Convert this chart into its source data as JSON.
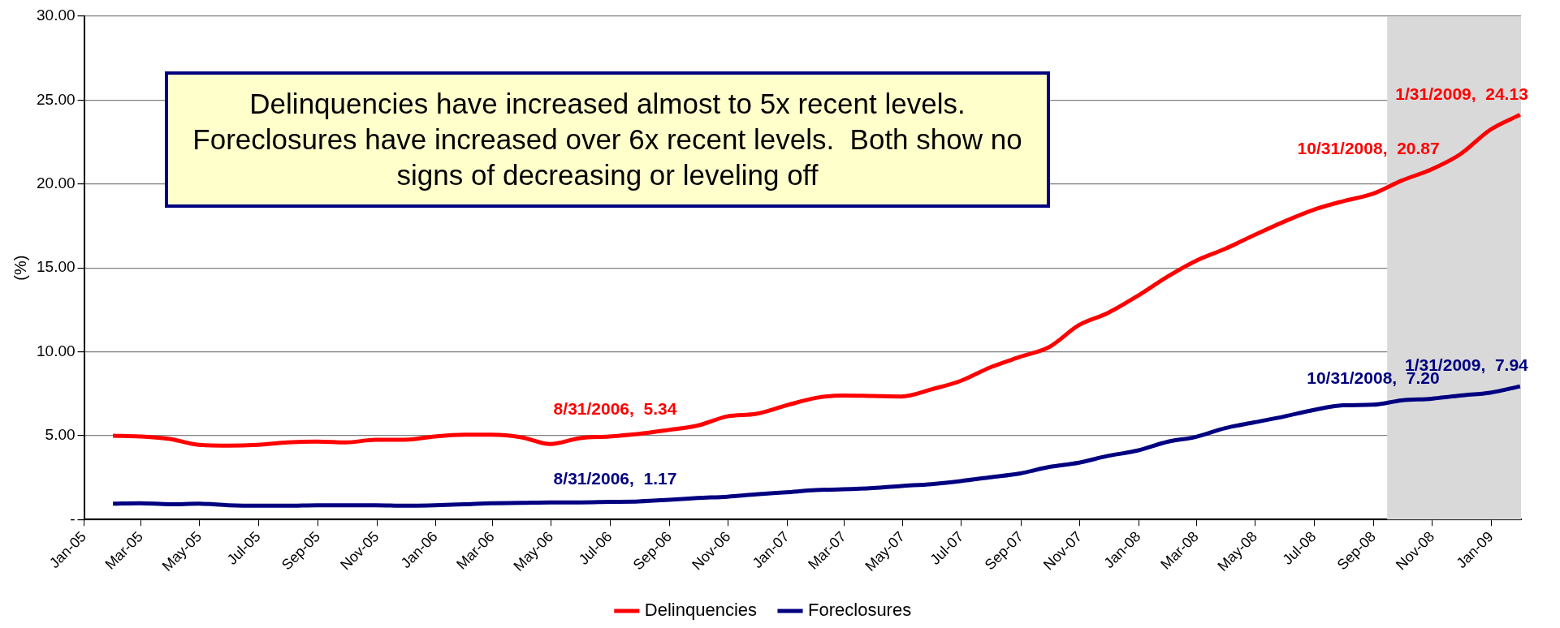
{
  "chart_data": {
    "type": "line",
    "ylabel": "(%)",
    "x": [
      "2005-01-31",
      "2005-02-28",
      "2005-03-31",
      "2005-04-30",
      "2005-05-31",
      "2005-06-30",
      "2005-07-31",
      "2005-08-31",
      "2005-09-30",
      "2005-10-31",
      "2005-11-30",
      "2005-12-31",
      "2006-01-31",
      "2006-02-28",
      "2006-03-31",
      "2006-04-30",
      "2006-05-31",
      "2006-06-30",
      "2006-07-31",
      "2006-08-31",
      "2006-09-30",
      "2006-10-31",
      "2006-11-30",
      "2006-12-31",
      "2007-01-31",
      "2007-02-28",
      "2007-03-31",
      "2007-04-30",
      "2007-05-31",
      "2007-06-30",
      "2007-07-31",
      "2007-08-31",
      "2007-09-30",
      "2007-10-31",
      "2007-11-30",
      "2007-12-31",
      "2008-01-31",
      "2008-02-29",
      "2008-03-31",
      "2008-04-30",
      "2008-05-31",
      "2008-06-30",
      "2008-07-31",
      "2008-08-31",
      "2008-09-30",
      "2008-10-31",
      "2008-11-30",
      "2008-12-31",
      "2009-01-31"
    ],
    "series": [
      {
        "name": "Delinquencies",
        "color": "#ff0000",
        "values": [
          5.0,
          4.95,
          4.8,
          4.45,
          4.4,
          4.45,
          4.6,
          4.65,
          4.6,
          4.75,
          4.75,
          4.95,
          5.05,
          5.05,
          4.9,
          4.5,
          4.85,
          4.95,
          5.1,
          5.34,
          5.6,
          6.15,
          6.3,
          6.8,
          7.25,
          7.39,
          7.36,
          7.33,
          7.76,
          8.26,
          9.07,
          9.7,
          10.28,
          11.59,
          12.31,
          13.33,
          14.48,
          15.41,
          16.14,
          16.95,
          17.76,
          18.45,
          18.97,
          19.41,
          20.2,
          20.87,
          21.78,
          23.23,
          24.13
        ],
        "value_labels": [
          null,
          null,
          null,
          null,
          null,
          null,
          null,
          null,
          null,
          null,
          null,
          null,
          null,
          null,
          null,
          null,
          null,
          null,
          null,
          "8/31/2006,  5.34",
          null,
          null,
          null,
          null,
          null,
          null,
          null,
          null,
          null,
          null,
          null,
          null,
          null,
          null,
          null,
          null,
          null,
          null,
          null,
          null,
          null,
          null,
          null,
          null,
          null,
          "10/31/2008,  20.87",
          null,
          null,
          "1/31/2009,  24.13"
        ]
      },
      {
        "name": "Foreclosures",
        "color": "#000080",
        "values": [
          0.94,
          0.97,
          0.91,
          0.94,
          0.85,
          0.82,
          0.82,
          0.85,
          0.85,
          0.85,
          0.82,
          0.85,
          0.91,
          0.97,
          0.99,
          1.02,
          1.02,
          1.05,
          1.08,
          1.17,
          1.28,
          1.36,
          1.5,
          1.62,
          1.75,
          1.8,
          1.88,
          2.0,
          2.11,
          2.29,
          2.52,
          2.75,
          3.13,
          3.39,
          3.79,
          4.11,
          4.63,
          4.92,
          5.45,
          5.79,
          6.14,
          6.52,
          6.81,
          6.84,
          7.1,
          7.2,
          7.39,
          7.56,
          7.94
        ],
        "value_labels": [
          null,
          null,
          null,
          null,
          null,
          null,
          null,
          null,
          null,
          null,
          null,
          null,
          null,
          null,
          null,
          null,
          null,
          null,
          null,
          "8/31/2006,  1.17",
          null,
          null,
          null,
          null,
          null,
          null,
          null,
          null,
          null,
          null,
          null,
          null,
          null,
          null,
          null,
          null,
          null,
          null,
          null,
          null,
          null,
          null,
          null,
          null,
          null,
          "10/31/2008,  7.20",
          null,
          null,
          "1/31/2009,  7.94"
        ]
      }
    ],
    "xlim": [
      "2005-01-01",
      "2009-02-01"
    ],
    "xticks": [
      {
        "value": "2005-01-01",
        "label": "Jan-05"
      },
      {
        "value": "2005-03-01",
        "label": "Mar-05"
      },
      {
        "value": "2005-05-01",
        "label": "May-05"
      },
      {
        "value": "2005-07-01",
        "label": "Jul-05"
      },
      {
        "value": "2005-09-01",
        "label": "Sep-05"
      },
      {
        "value": "2005-11-01",
        "label": "Nov-05"
      },
      {
        "value": "2006-01-01",
        "label": "Jan-06"
      },
      {
        "value": "2006-03-01",
        "label": "Mar-06"
      },
      {
        "value": "2006-05-01",
        "label": "May-06"
      },
      {
        "value": "2006-07-01",
        "label": "Jul-06"
      },
      {
        "value": "2006-09-01",
        "label": "Sep-06"
      },
      {
        "value": "2006-11-01",
        "label": "Nov-06"
      },
      {
        "value": "2007-01-01",
        "label": "Jan-07"
      },
      {
        "value": "2007-03-01",
        "label": "Mar-07"
      },
      {
        "value": "2007-05-01",
        "label": "May-07"
      },
      {
        "value": "2007-07-01",
        "label": "Jul-07"
      },
      {
        "value": "2007-09-01",
        "label": "Sep-07"
      },
      {
        "value": "2007-11-01",
        "label": "Nov-07"
      },
      {
        "value": "2008-01-01",
        "label": "Jan-08"
      },
      {
        "value": "2008-03-01",
        "label": "Mar-08"
      },
      {
        "value": "2008-05-01",
        "label": "May-08"
      },
      {
        "value": "2008-07-01",
        "label": "Jul-08"
      },
      {
        "value": "2008-09-01",
        "label": "Sep-08"
      },
      {
        "value": "2008-11-01",
        "label": "Nov-08"
      },
      {
        "value": "2009-01-01",
        "label": "Jan-09"
      }
    ],
    "ylim": [
      0,
      30
    ],
    "yticks": [
      {
        "value": 0,
        "label": "-"
      },
      {
        "value": 5,
        "label": "5.00"
      },
      {
        "value": 10,
        "label": "10.00"
      },
      {
        "value": 15,
        "label": "15.00"
      },
      {
        "value": 20,
        "label": "20.00"
      },
      {
        "value": 25,
        "label": "25.00"
      },
      {
        "value": 30,
        "label": "30.00"
      }
    ],
    "bands": [
      {
        "axis": "x",
        "from": "2008-09-15",
        "to": "2009-02-01",
        "color": "#d9d9d9"
      }
    ],
    "annotations": [
      "Delinquencies have increased almost to 5x recent levels. Foreclosures have increased over 6x recent levels.  Both show no signs of decreasing or leveling off"
    ],
    "grid": "y",
    "legend": "bottom",
    "marker": "none",
    "line_style": "solid"
  }
}
